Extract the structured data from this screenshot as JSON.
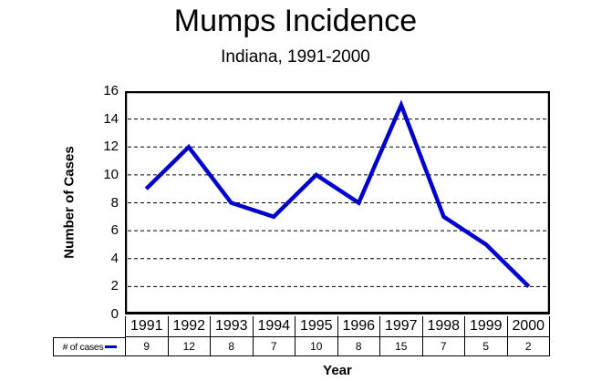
{
  "chart_data": {
    "type": "line",
    "title": "Mumps Incidence",
    "subtitle": "Indiana, 1991-2000",
    "xlabel": "Year",
    "ylabel": "Number of Cases",
    "categories": [
      "1991",
      "1992",
      "1993",
      "1994",
      "1995",
      "1996",
      "1997",
      "1998",
      "1999",
      "2000"
    ],
    "series": [
      {
        "name": "# of cases",
        "values": [
          9,
          12,
          8,
          7,
          10,
          8,
          15,
          7,
          5,
          2
        ],
        "color": "#0000cc"
      }
    ],
    "ylim": [
      0,
      16
    ],
    "yticks": [
      16,
      14,
      12,
      10,
      8,
      6,
      4,
      2,
      0
    ],
    "grid": "horizontal-dashed",
    "legend_position": "table-row-header",
    "plot_border_color": "#000000",
    "background_color": "#ffffff"
  }
}
